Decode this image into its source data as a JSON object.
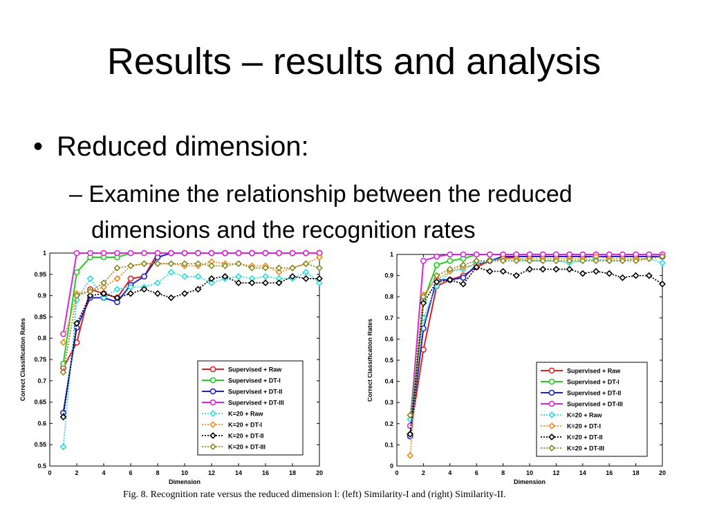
{
  "slide": {
    "title": "Results – results and analysis",
    "bullet": "Reduced dimension:",
    "sub_line1": "– Examine the relationship between the reduced",
    "sub_line2": "dimensions and the recognition rates",
    "caption": "Fig. 8.   Recognition rate versus the reduced dimension l: (left) Similarity-I and (right) Similarity-II."
  },
  "legend": [
    {
      "name": "Supervised + Raw",
      "color": "#e02020",
      "marker": "circle",
      "dash": "solid"
    },
    {
      "name": "Supervised + DT-I",
      "color": "#22cc22",
      "marker": "circle",
      "dash": "solid"
    },
    {
      "name": "Supervised + DT-II",
      "color": "#2020c8",
      "marker": "circle",
      "dash": "solid"
    },
    {
      "name": "Supervised + DT-III",
      "color": "#dd22dd",
      "marker": "circle",
      "dash": "solid"
    },
    {
      "name": "K=20 + Raw",
      "color": "#22dddd",
      "marker": "diamond",
      "dash": "dotted"
    },
    {
      "name": "K=20 + DT-I",
      "color": "#f08a1c",
      "marker": "diamond",
      "dash": "dotted"
    },
    {
      "name": "K=20 + DT-II",
      "color": "#000000",
      "marker": "diamond",
      "dash": "dotted"
    },
    {
      "name": "K=20 + DT-III",
      "color": "#888820",
      "marker": "diamond",
      "dash": "dotted"
    }
  ],
  "chart_data": [
    {
      "type": "line",
      "xlabel": "Dimension",
      "ylabel": "Correct Classification Rates",
      "xlim": [
        0,
        20
      ],
      "ylim": [
        0.5,
        1
      ],
      "xticks": [
        0,
        2,
        4,
        6,
        8,
        10,
        12,
        14,
        16,
        18,
        20
      ],
      "yticks": [
        0.5,
        0.55,
        0.6,
        0.65,
        0.7,
        0.75,
        0.8,
        0.85,
        0.9,
        0.95,
        1
      ],
      "ytick_labels": [
        "0.5",
        "0.55",
        "0.6",
        "0.65",
        "0.7",
        "0.75",
        "0.8",
        "0.85",
        "0.9",
        "0.95",
        "1"
      ],
      "x": [
        1,
        2,
        3,
        4,
        5,
        6,
        7,
        8,
        9,
        10,
        11,
        12,
        13,
        14,
        15,
        16,
        17,
        18,
        19,
        20
      ],
      "series": [
        {
          "name": "Supervised + Raw",
          "values": [
            0.73,
            0.79,
            0.915,
            0.905,
            0.895,
            0.94,
            0.945,
            1,
            1,
            1,
            1,
            1,
            1,
            1,
            1,
            1,
            1,
            1,
            1,
            1
          ]
        },
        {
          "name": "Supervised + DT-I",
          "values": [
            0.74,
            0.955,
            0.99,
            0.99,
            0.99,
            1,
            1,
            1,
            1,
            1,
            1,
            1,
            1,
            1,
            1,
            1,
            1,
            1,
            1,
            1
          ]
        },
        {
          "name": "Supervised + DT-II",
          "values": [
            0.625,
            0.825,
            0.895,
            0.895,
            0.885,
            0.925,
            0.945,
            0.99,
            1,
            1,
            1,
            1,
            1,
            1,
            1,
            1,
            1,
            1,
            1,
            1
          ]
        },
        {
          "name": "Supervised + DT-III",
          "values": [
            0.81,
            1,
            1,
            1,
            1,
            1,
            1,
            1,
            1,
            1,
            1,
            1,
            1,
            1,
            1,
            1,
            1,
            1,
            1,
            1
          ]
        },
        {
          "name": "K=20 + Raw",
          "values": [
            0.545,
            0.89,
            0.94,
            0.895,
            0.915,
            0.92,
            0.92,
            0.93,
            0.955,
            0.945,
            0.945,
            0.93,
            0.94,
            0.945,
            0.94,
            0.945,
            0.94,
            0.94,
            0.955,
            0.93
          ]
        },
        {
          "name": "K=20 + DT-I",
          "values": [
            0.79,
            0.905,
            0.91,
            0.92,
            0.94,
            0.97,
            0.975,
            0.975,
            0.975,
            0.97,
            0.97,
            0.98,
            0.975,
            0.975,
            0.97,
            0.97,
            0.955,
            0.965,
            0.975,
            0.99
          ]
        },
        {
          "name": "K=20 + DT-II",
          "values": [
            0.615,
            0.835,
            0.9,
            0.905,
            0.895,
            0.905,
            0.915,
            0.905,
            0.895,
            0.905,
            0.915,
            0.94,
            0.945,
            0.93,
            0.93,
            0.93,
            0.93,
            0.945,
            0.94,
            0.94
          ]
        },
        {
          "name": "K=20 + DT-III",
          "values": [
            0.72,
            0.9,
            0.91,
            0.93,
            0.965,
            0.97,
            0.975,
            0.975,
            0.975,
            0.975,
            0.975,
            0.97,
            0.97,
            0.975,
            0.965,
            0.965,
            0.965,
            0.965,
            0.975,
            0.965
          ]
        }
      ]
    },
    {
      "type": "line",
      "xlabel": "Dimension",
      "ylabel": "Correct Classification Rates",
      "xlim": [
        0,
        20
      ],
      "ylim": [
        0,
        1
      ],
      "xticks": [
        0,
        2,
        4,
        6,
        8,
        10,
        12,
        14,
        16,
        18,
        20
      ],
      "yticks": [
        0,
        0.1,
        0.2,
        0.3,
        0.4,
        0.5,
        0.6,
        0.7,
        0.8,
        0.9,
        1
      ],
      "ytick_labels": [
        "0",
        "0.1",
        "0.2",
        "0.3",
        "0.4",
        "0.5",
        "0.6",
        "0.7",
        "0.8",
        "0.9",
        "1"
      ],
      "x": [
        1,
        2,
        3,
        4,
        5,
        6,
        7,
        8,
        9,
        10,
        11,
        12,
        13,
        14,
        15,
        16,
        17,
        18,
        19,
        20
      ],
      "series": [
        {
          "name": "Supervised + Raw",
          "values": [
            0.15,
            0.55,
            0.85,
            0.88,
            0.9,
            0.94,
            0.97,
            0.98,
            0.99,
            0.99,
            0.99,
            0.99,
            0.99,
            0.99,
            0.99,
            0.99,
            0.99,
            0.99,
            0.99,
            0.99
          ]
        },
        {
          "name": "Supervised + DT-I",
          "values": [
            0.15,
            0.78,
            0.95,
            0.97,
            0.98,
            1,
            1,
            1,
            1,
            1,
            1,
            1,
            1,
            1,
            1,
            1,
            1,
            1,
            1,
            1
          ]
        },
        {
          "name": "Supervised + DT-II",
          "values": [
            0.14,
            0.65,
            0.88,
            0.88,
            0.89,
            0.95,
            0.97,
            0.99,
            0.99,
            0.99,
            0.99,
            0.99,
            0.99,
            0.99,
            0.99,
            0.99,
            0.99,
            0.99,
            0.99,
            0.99
          ]
        },
        {
          "name": "Supervised + DT-III",
          "values": [
            0.19,
            0.97,
            0.99,
            1,
            1,
            1,
            1,
            1,
            1,
            1,
            1,
            1,
            1,
            1,
            1,
            1,
            1,
            1,
            1,
            1
          ]
        },
        {
          "name": "K=20 + Raw",
          "values": [
            0.22,
            0.7,
            0.85,
            0.92,
            0.93,
            0.96,
            0.97,
            0.98,
            0.98,
            0.97,
            0.97,
            0.97,
            0.96,
            0.97,
            0.98,
            0.97,
            0.97,
            0.98,
            0.98,
            0.96
          ]
        },
        {
          "name": "K=20 + DT-I",
          "values": [
            0.05,
            0.81,
            0.88,
            0.92,
            0.94,
            0.95,
            0.97,
            0.98,
            0.98,
            0.98,
            0.98,
            0.98,
            0.98,
            0.98,
            0.99,
            0.98,
            0.98,
            0.98,
            0.98,
            0.99
          ]
        },
        {
          "name": "K=20 + DT-II",
          "values": [
            0.15,
            0.77,
            0.87,
            0.88,
            0.86,
            0.94,
            0.92,
            0.92,
            0.9,
            0.93,
            0.93,
            0.93,
            0.93,
            0.91,
            0.92,
            0.91,
            0.89,
            0.9,
            0.9,
            0.86
          ]
        },
        {
          "name": "K=20 + DT-III",
          "values": [
            0.24,
            0.8,
            0.9,
            0.93,
            0.95,
            0.97,
            0.97,
            0.97,
            0.97,
            0.97,
            0.97,
            0.97,
            0.97,
            0.97,
            0.97,
            0.97,
            0.97,
            0.97,
            0.98,
            0.99
          ]
        }
      ]
    }
  ]
}
